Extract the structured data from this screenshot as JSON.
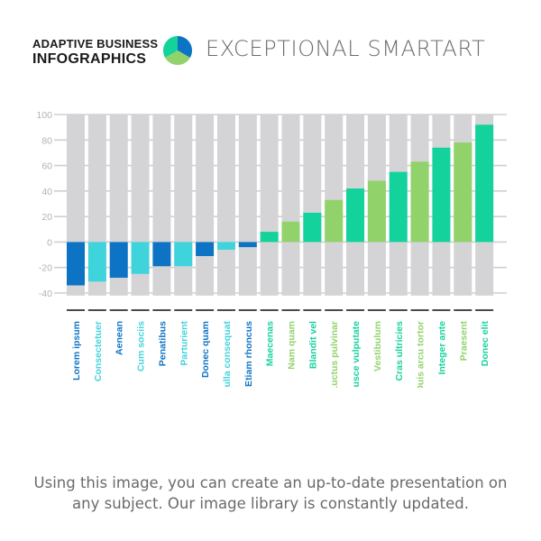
{
  "brand": {
    "line1": "ADAPTIVE BUSINESS",
    "line2": "INFOGRAPHICS"
  },
  "title": "EXCEPTIONAL SMARTART",
  "caption": "Using this image, you can create an up-to-date presentation on any subject. Our image library is constantly updated.",
  "colors": {
    "blue": "#0d74c5",
    "cyan": "#3fd3dc",
    "green": "#91d26a",
    "teal": "#13d29c",
    "track": "#d4d4d6",
    "grid": "#cfcfcf",
    "tick": "#b2b2b2",
    "title": "#6b6b6b",
    "caption": "#6a6a6a"
  },
  "chart_data": {
    "type": "bar",
    "ylim": [
      -40,
      100
    ],
    "yticks": [
      100,
      80,
      60,
      40,
      20,
      0,
      -20,
      -40
    ],
    "grid": true,
    "categories": [
      "Lorem ipsum",
      "Consectetuer",
      "Aenean",
      "Cum sociis",
      "Penatibus",
      "Parturient",
      "Donec quam",
      "Nulla consequat",
      "Etiam rhoncus",
      "Maecenas",
      "Nam quam",
      "Blandit vel",
      "Luctus pulvinar",
      "Fusce vulputate",
      "Vestibulum",
      "Cras ultricies",
      "Duis arcu tortor",
      "Integer ante",
      "Praesent",
      "Donec elit"
    ],
    "values": [
      -34,
      -31,
      -28,
      -25,
      -19,
      -19,
      -11,
      -6,
      -4,
      8,
      16,
      23,
      33,
      42,
      48,
      55,
      63,
      74,
      78,
      92
    ],
    "bar_colors": [
      "blue",
      "cyan",
      "blue",
      "cyan",
      "blue",
      "cyan",
      "blue",
      "cyan",
      "blue",
      "teal",
      "green",
      "teal",
      "green",
      "teal",
      "green",
      "teal",
      "green",
      "teal",
      "green",
      "teal"
    ],
    "track_min": -42,
    "track_max": 100
  }
}
